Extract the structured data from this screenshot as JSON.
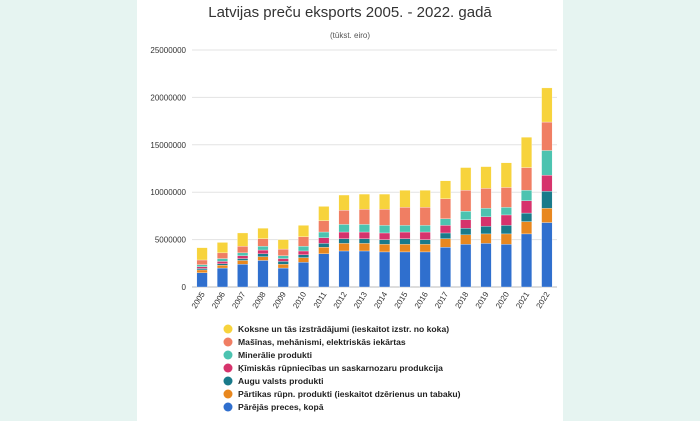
{
  "chart_data": {
    "type": "bar",
    "stacked": true,
    "title": "Latvijas preču eksports 2005. - 2022. gadā",
    "subtitle": "(tūkst. eiro)",
    "xlabel": "",
    "ylabel": "",
    "ylim": [
      0,
      25000000
    ],
    "yticks": [
      0,
      5000000,
      10000000,
      15000000,
      20000000,
      25000000
    ],
    "ytick_labels": [
      "0",
      "5000000",
      "10000000",
      "15000000",
      "20000000",
      "25000000"
    ],
    "grid": true,
    "legend_position": "bottom",
    "categories": [
      "2005",
      "2006",
      "2007",
      "2008",
      "2009",
      "2010",
      "2011",
      "2012",
      "2013",
      "2014",
      "2015",
      "2016",
      "2017",
      "2018",
      "2019",
      "2020",
      "2021",
      "2022"
    ],
    "series": [
      {
        "name": "Pārējās preces, kopā",
        "color": "#2f6fce",
        "values": [
          1500000,
          2000000,
          2400000,
          2800000,
          2000000,
          2600000,
          3500000,
          3800000,
          3800000,
          3700000,
          3700000,
          3700000,
          4200000,
          4500000,
          4600000,
          4500000,
          5600000,
          6800000
        ]
      },
      {
        "name": "Pārtikas rūpn. produkti (ieskaitot dzērienus un tabaku)",
        "color": "#e8871e",
        "values": [
          300000,
          300000,
          400000,
          400000,
          400000,
          500000,
          700000,
          800000,
          800000,
          800000,
          800000,
          800000,
          900000,
          1000000,
          1000000,
          1100000,
          1300000,
          1500000
        ]
      },
      {
        "name": "Augu valsts produkti",
        "color": "#197a8a",
        "values": [
          150000,
          150000,
          200000,
          300000,
          300000,
          300000,
          400000,
          500000,
          500000,
          500000,
          600000,
          500000,
          600000,
          700000,
          800000,
          900000,
          900000,
          1800000
        ]
      },
      {
        "name": "Ķīmiskās rūpniecības un saskarnozaru produkcija",
        "color": "#d6336c",
        "values": [
          200000,
          250000,
          300000,
          400000,
          300000,
          400000,
          600000,
          700000,
          700000,
          700000,
          700000,
          800000,
          800000,
          900000,
          1000000,
          1100000,
          1300000,
          1700000
        ]
      },
      {
        "name": "Minerālie produkti",
        "color": "#4cc3b0",
        "values": [
          200000,
          300000,
          300000,
          400000,
          300000,
          500000,
          600000,
          800000,
          800000,
          800000,
          700000,
          700000,
          700000,
          900000,
          900000,
          800000,
          1100000,
          2600000
        ]
      },
      {
        "name": "Mašīnas, mehānismi, elektriskās iekārtas",
        "color": "#f07e63",
        "values": [
          500000,
          600000,
          700000,
          800000,
          700000,
          1000000,
          1200000,
          1500000,
          1600000,
          1700000,
          1900000,
          1900000,
          2100000,
          2200000,
          2100000,
          2100000,
          2400000,
          3000000
        ]
      },
      {
        "name": "Koksne un tās izstrādājumi (ieskaitot izstr. no koka)",
        "color": "#f7d33c",
        "values": [
          1300000,
          1100000,
          1400000,
          1100000,
          1000000,
          1200000,
          1500000,
          1600000,
          1600000,
          1600000,
          1800000,
          1800000,
          1900000,
          2400000,
          2300000,
          2600000,
          3200000,
          3600000
        ]
      }
    ]
  }
}
